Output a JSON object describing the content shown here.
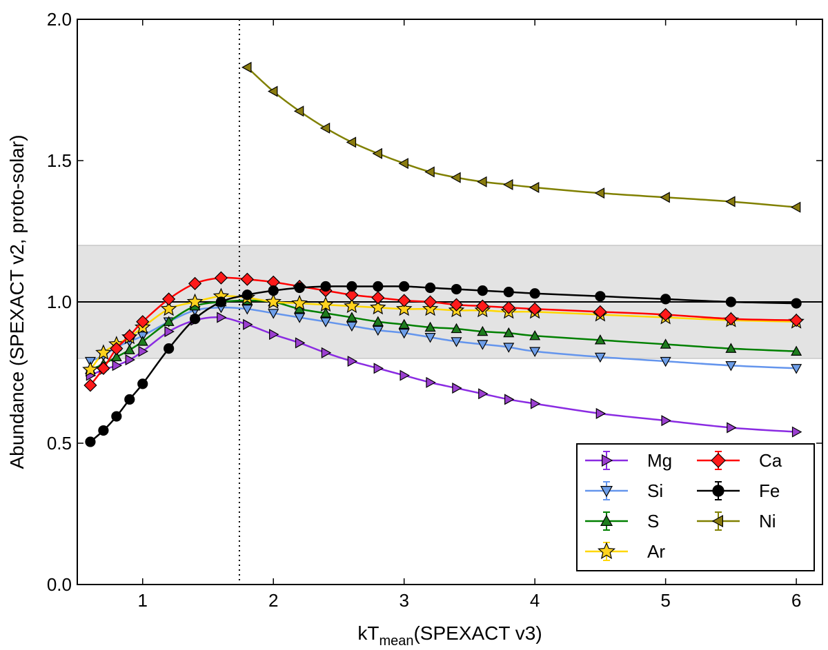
{
  "chart_data": {
    "type": "line",
    "xlabel_main": "kT",
    "xlabel_sub": "mean",
    "xlabel_rest": "(SPEXACT v3)",
    "ylabel": "Abundance (SPEXACT v2, proto-solar)",
    "xlim": [
      0.5,
      6.2
    ],
    "ylim": [
      0.0,
      2.0
    ],
    "xticks": [
      1,
      2,
      3,
      4,
      5,
      6
    ],
    "xtick_labels": [
      "1",
      "2",
      "3",
      "4",
      "5",
      "6"
    ],
    "yticks": [
      0.0,
      0.5,
      1.0,
      1.5,
      2.0
    ],
    "ytick_labels": [
      "0.0",
      "0.5",
      "1.0",
      "1.5",
      "2.0"
    ],
    "grid": false,
    "shaded_band": [
      0.8,
      1.2
    ],
    "hline": 1.0,
    "vline": 1.74,
    "legend_position": "bottom-right",
    "legend_columns": 2,
    "series": [
      {
        "name": "Mg",
        "marker": "triangle-right",
        "color": "#8a2be2",
        "fill": "#9b3fd0",
        "x": [
          0.6,
          0.7,
          0.8,
          0.9,
          1.0,
          1.2,
          1.4,
          1.6,
          1.8,
          2.0,
          2.2,
          2.4,
          2.6,
          2.8,
          3.0,
          3.2,
          3.4,
          3.6,
          3.8,
          4.0,
          4.5,
          5.0,
          5.5,
          6.0
        ],
        "y": [
          0.74,
          0.76,
          0.775,
          0.795,
          0.825,
          0.895,
          0.935,
          0.945,
          0.92,
          0.885,
          0.855,
          0.82,
          0.79,
          0.765,
          0.74,
          0.715,
          0.695,
          0.675,
          0.655,
          0.64,
          0.605,
          0.58,
          0.555,
          0.54
        ]
      },
      {
        "name": "Si",
        "marker": "triangle-down",
        "color": "#6495ed",
        "fill": "#6d9ee8",
        "x": [
          0.6,
          0.7,
          0.8,
          0.9,
          1.0,
          1.2,
          1.4,
          1.6,
          1.8,
          2.0,
          2.2,
          2.4,
          2.6,
          2.8,
          3.0,
          3.2,
          3.4,
          3.6,
          3.8,
          4.0,
          4.5,
          5.0,
          5.5,
          6.0
        ],
        "y": [
          0.79,
          0.81,
          0.84,
          0.86,
          0.88,
          0.93,
          0.97,
          0.98,
          0.975,
          0.96,
          0.945,
          0.93,
          0.915,
          0.9,
          0.89,
          0.875,
          0.86,
          0.85,
          0.84,
          0.825,
          0.805,
          0.79,
          0.775,
          0.765
        ]
      },
      {
        "name": "S",
        "marker": "triangle-up",
        "color": "#008000",
        "fill": "#1e7d1e",
        "x": [
          0.6,
          0.7,
          0.8,
          0.9,
          1.0,
          1.2,
          1.4,
          1.6,
          1.8,
          2.0,
          2.2,
          2.4,
          2.6,
          2.8,
          3.0,
          3.2,
          3.4,
          3.6,
          3.8,
          4.0,
          4.5,
          5.0,
          5.5,
          6.0
        ],
        "y": [
          0.76,
          0.78,
          0.805,
          0.83,
          0.86,
          0.93,
          0.985,
          1.0,
          1.005,
          1.0,
          0.975,
          0.96,
          0.945,
          0.93,
          0.92,
          0.91,
          0.905,
          0.895,
          0.89,
          0.88,
          0.865,
          0.85,
          0.835,
          0.825
        ]
      },
      {
        "name": "Ar",
        "marker": "star",
        "color": "#ffd700",
        "fill": "#ffd21e",
        "x": [
          0.6,
          0.7,
          0.8,
          0.9,
          1.0,
          1.2,
          1.4,
          1.6,
          1.8,
          2.0,
          2.2,
          2.4,
          2.6,
          2.8,
          3.0,
          3.2,
          3.4,
          3.6,
          3.8,
          4.0,
          4.5,
          5.0,
          5.5,
          6.0
        ],
        "y": [
          0.76,
          0.82,
          0.85,
          0.875,
          0.91,
          0.975,
          1.0,
          1.02,
          1.015,
          1.0,
          0.995,
          0.99,
          0.985,
          0.98,
          0.975,
          0.975,
          0.97,
          0.97,
          0.965,
          0.965,
          0.955,
          0.945,
          0.935,
          0.93
        ]
      },
      {
        "name": "Ca",
        "marker": "diamond",
        "color": "#ff0000",
        "fill": "#ff1a1a",
        "x": [
          0.6,
          0.7,
          0.8,
          0.9,
          1.0,
          1.2,
          1.4,
          1.6,
          1.8,
          2.0,
          2.2,
          2.4,
          2.6,
          2.8,
          3.0,
          3.2,
          3.4,
          3.6,
          3.8,
          4.0,
          4.5,
          5.0,
          5.5,
          6.0
        ],
        "y": [
          0.705,
          0.765,
          0.835,
          0.88,
          0.93,
          1.01,
          1.065,
          1.085,
          1.08,
          1.07,
          1.055,
          1.04,
          1.025,
          1.015,
          1.005,
          1.0,
          0.99,
          0.985,
          0.98,
          0.975,
          0.965,
          0.955,
          0.94,
          0.935
        ]
      },
      {
        "name": "Fe",
        "marker": "circle",
        "color": "#000000",
        "fill": "#000000",
        "x": [
          0.6,
          0.7,
          0.8,
          0.9,
          1.0,
          1.2,
          1.4,
          1.6,
          1.8,
          2.0,
          2.2,
          2.4,
          2.6,
          2.8,
          3.0,
          3.2,
          3.4,
          3.6,
          3.8,
          4.0,
          4.5,
          5.0,
          5.5,
          6.0
        ],
        "y": [
          0.505,
          0.545,
          0.595,
          0.655,
          0.71,
          0.835,
          0.94,
          1.0,
          1.025,
          1.04,
          1.05,
          1.055,
          1.055,
          1.055,
          1.055,
          1.05,
          1.045,
          1.04,
          1.035,
          1.03,
          1.02,
          1.01,
          1.0,
          0.995
        ]
      },
      {
        "name": "Ni",
        "marker": "triangle-left",
        "color": "#808000",
        "fill": "#8a7c10",
        "x": [
          1.8,
          2.0,
          2.2,
          2.4,
          2.6,
          2.8,
          3.0,
          3.2,
          3.4,
          3.6,
          3.8,
          4.0,
          4.5,
          5.0,
          5.5,
          6.0
        ],
        "y": [
          1.83,
          1.745,
          1.675,
          1.615,
          1.565,
          1.525,
          1.49,
          1.46,
          1.44,
          1.425,
          1.415,
          1.405,
          1.385,
          1.37,
          1.355,
          1.335
        ]
      }
    ]
  }
}
